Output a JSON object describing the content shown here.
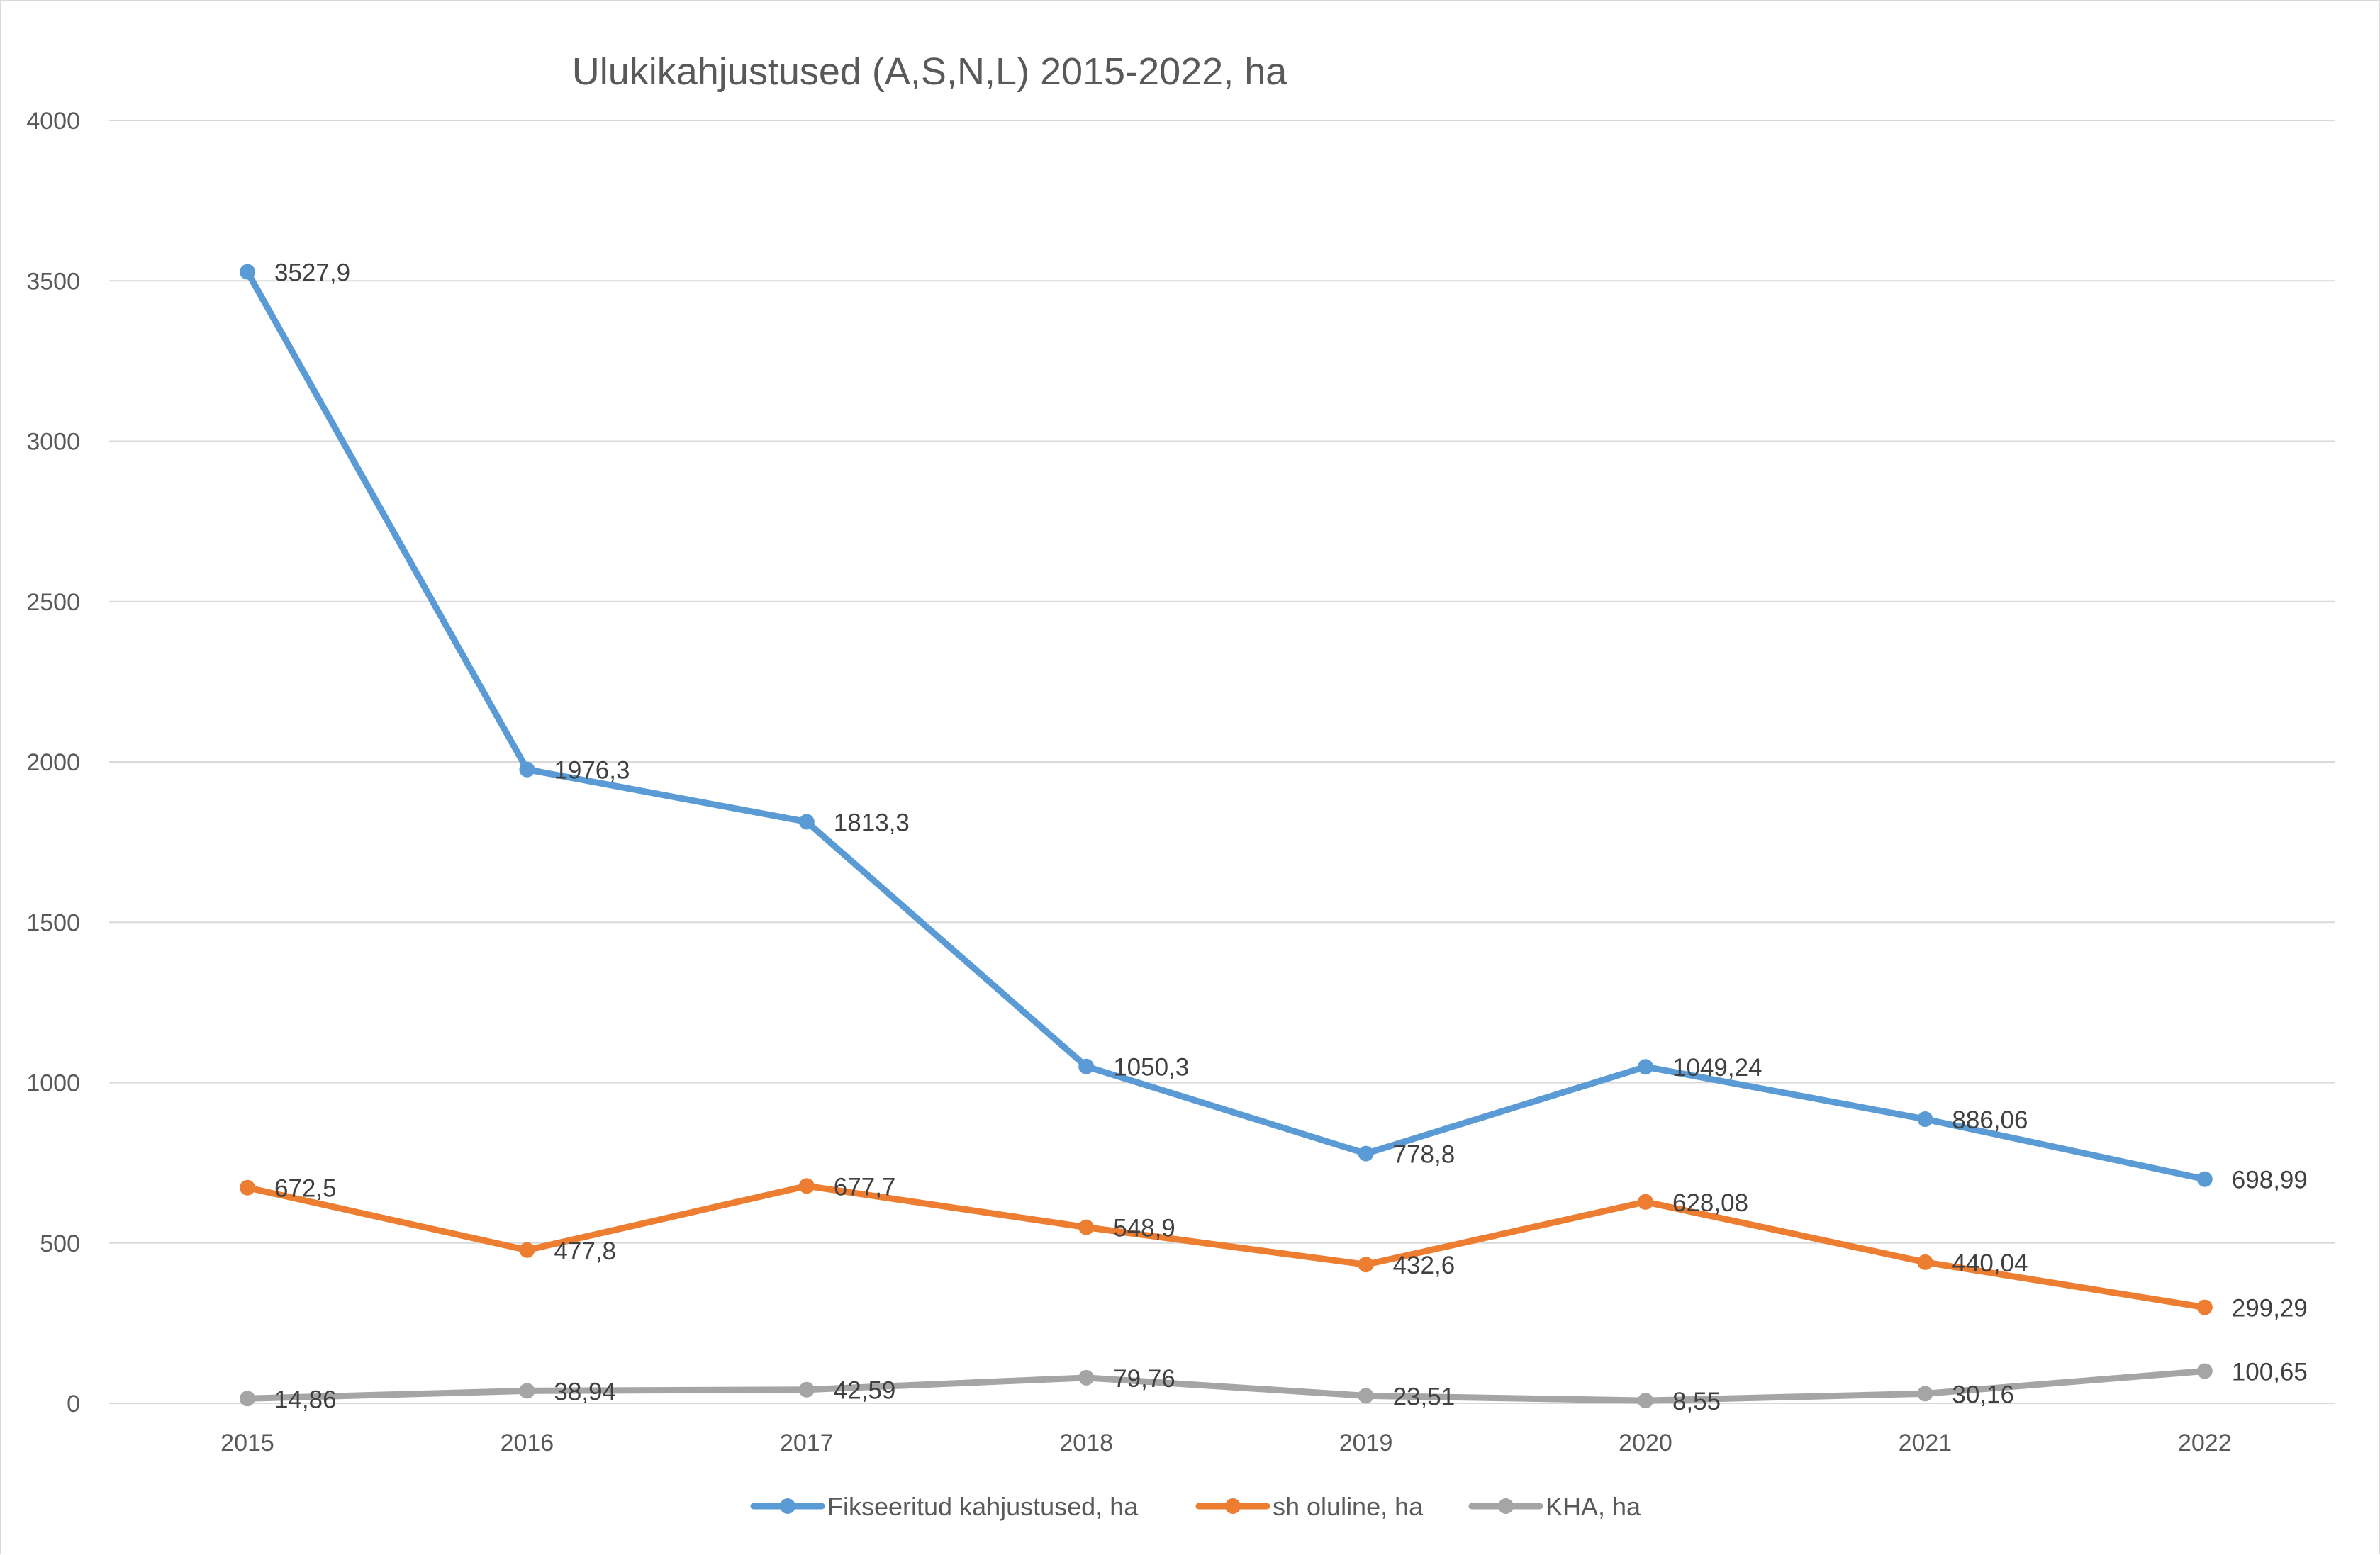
{
  "chart_data": {
    "type": "line",
    "title": "Ulukikahjustused (A,S,N,L) 2015-2022, ha",
    "xlabel": "",
    "ylabel": "",
    "categories": [
      "2015",
      "2016",
      "2017",
      "2018",
      "2019",
      "2020",
      "2021",
      "2022"
    ],
    "ylim": [
      0,
      4000
    ],
    "yticks": [
      0,
      500,
      1000,
      1500,
      2000,
      2500,
      3000,
      3500,
      4000
    ],
    "grid": true,
    "legend_position": "bottom",
    "series": [
      {
        "name": "Fikseeritud kahjustused, ha",
        "color": "#5b9bd5",
        "values": [
          3527.9,
          1976.3,
          1813.3,
          1050.3,
          778.8,
          1049.24,
          886.06,
          698.99
        ],
        "labels": [
          "3527,9",
          "1976,3",
          "1813,3",
          "1050,3",
          "778,8",
          "1049,24",
          "886,06",
          "698,99"
        ]
      },
      {
        "name": "sh oluline, ha",
        "color": "#ed7d31",
        "values": [
          672.5,
          477.8,
          677.7,
          548.9,
          432.6,
          628.08,
          440.04,
          299.29
        ],
        "labels": [
          "672,5",
          "477,8",
          "677,7",
          "548,9",
          "432,6",
          "628,08",
          "440,04",
          "299,29"
        ]
      },
      {
        "name": "KHA, ha",
        "color": "#a5a5a5",
        "values": [
          14.86,
          38.94,
          42.59,
          79.76,
          23.51,
          8.55,
          30.16,
          100.65
        ],
        "labels": [
          "14,86",
          "38,94",
          "42,59",
          "79,76",
          "23,51",
          "8,55",
          "30,16",
          "100,65"
        ]
      }
    ]
  }
}
